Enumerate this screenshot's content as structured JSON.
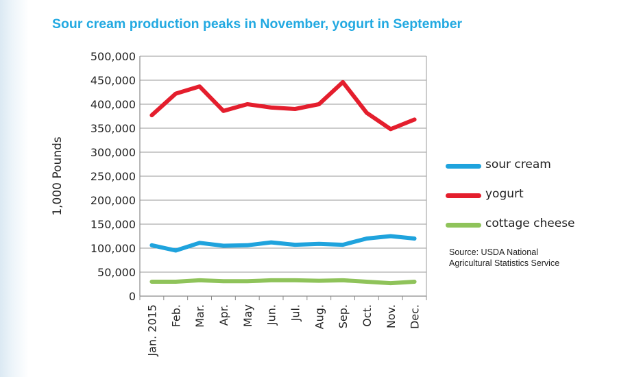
{
  "chart_data": {
    "type": "line",
    "title": "Sour cream production peaks in November, yogurt in September",
    "ylabel": "1,000 Pounds",
    "xlabel": "",
    "categories": [
      "Jan. 2015",
      "Feb.",
      "Mar.",
      "Apr.",
      "May",
      "Jun.",
      "Jul.",
      "Aug.",
      "Sep.",
      "Oct.",
      "Nov.",
      "Dec."
    ],
    "ylim": [
      0,
      500000
    ],
    "yticks": [
      0,
      50000,
      100000,
      150000,
      200000,
      250000,
      300000,
      350000,
      400000,
      450000,
      500000
    ],
    "ytick_labels": [
      "0",
      "50,000",
      "100,000",
      "150,000",
      "200,000",
      "250,000",
      "300,000",
      "350,000",
      "400,000",
      "450,000",
      "500,000"
    ],
    "grid": true,
    "legend_position": "right",
    "series": [
      {
        "name": "sour cream",
        "color": "#1fa3dd",
        "values": [
          106000,
          95000,
          111000,
          105000,
          106000,
          112000,
          107000,
          109000,
          107000,
          120000,
          125000,
          120000
        ]
      },
      {
        "name": "yogurt",
        "color": "#e41e2d",
        "values": [
          377000,
          422000,
          437000,
          386000,
          400000,
          393000,
          390000,
          400000,
          446000,
          382000,
          348000,
          368000
        ]
      },
      {
        "name": "cottage cheese",
        "color": "#8fc35a",
        "values": [
          30000,
          30000,
          33000,
          31000,
          31000,
          33000,
          33000,
          32000,
          33000,
          30000,
          27000,
          30000
        ]
      }
    ],
    "source_lines": [
      "Source: USDA National",
      "Agricultural Statistics Service"
    ]
  }
}
